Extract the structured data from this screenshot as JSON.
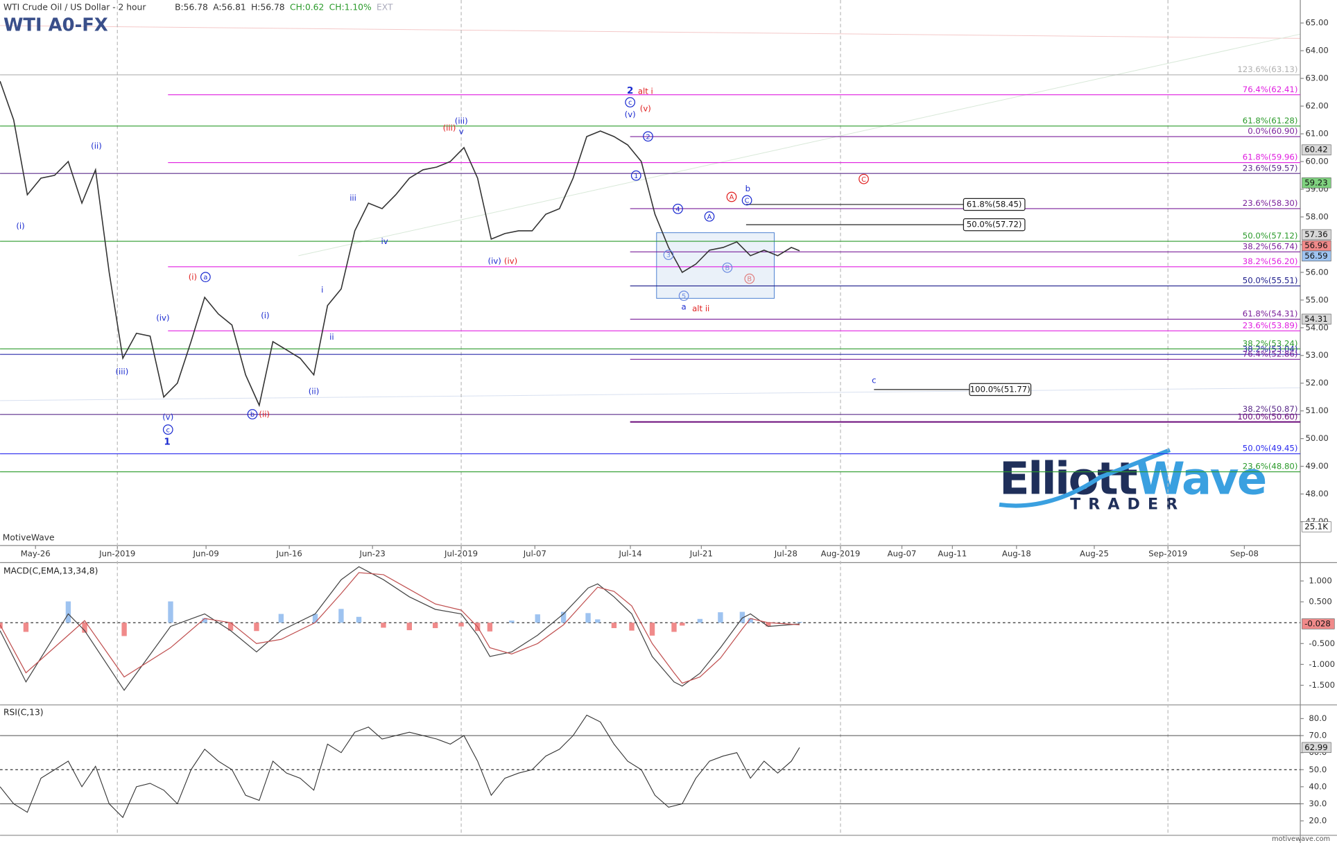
{
  "chart_data": {
    "type": "line",
    "title": "WTI Crude Oil / US Dollar - 2 hour",
    "symbol": "WTI A0-FX",
    "quote": [
      "B:56.78",
      "A:56.81",
      "H:56.78",
      "CH:0.62",
      "CH:1.10%",
      "EXT"
    ],
    "watermark": "MotiveWave",
    "footer": "motivewave.com",
    "logo": {
      "brand1": "Elliott",
      "brand2": "Wave",
      "tagline": "TRADER"
    },
    "x": [
      0,
      10,
      20,
      30,
      40,
      50,
      60,
      70,
      80,
      90,
      100,
      110,
      120,
      130,
      140,
      150,
      160,
      170,
      180,
      190,
      200,
      210,
      220,
      230,
      240,
      250,
      260,
      270,
      280,
      290,
      300,
      310,
      320,
      330,
      340,
      350,
      360,
      370,
      380,
      390,
      400,
      410,
      420,
      430,
      440,
      450,
      460,
      470,
      480,
      490,
      500,
      510,
      520,
      530,
      540,
      550,
      560,
      570,
      580,
      586
    ],
    "series": [
      {
        "name": "WTI A0-FX",
        "color": "#333333",
        "values": [
          62.9,
          61.5,
          58.8,
          59.4,
          59.5,
          60.0,
          58.5,
          59.7,
          56.0,
          52.9,
          53.8,
          53.7,
          51.5,
          52.0,
          53.5,
          55.1,
          54.5,
          54.1,
          52.3,
          51.2,
          53.5,
          53.2,
          52.9,
          52.3,
          54.8,
          55.4,
          57.5,
          58.5,
          58.3,
          58.8,
          59.4,
          59.7,
          59.8,
          60.0,
          60.5,
          59.4,
          57.2,
          57.4,
          57.5,
          57.5,
          58.1,
          58.3,
          59.4,
          60.9,
          61.1,
          60.9,
          60.6,
          60.0,
          58.1,
          56.9,
          56.0,
          56.3,
          56.8,
          56.9,
          57.1,
          56.6,
          56.8,
          56.6,
          56.9,
          56.78
        ]
      }
    ],
    "xlim": [
      0,
      953
    ],
    "xticks": [
      {
        "value": 26,
        "label": "May-26"
      },
      {
        "value": 86,
        "label": "Jun-2019"
      },
      {
        "value": 151,
        "label": "Jun-09"
      },
      {
        "value": 212,
        "label": "Jun-16"
      },
      {
        "value": 273,
        "label": "Jun-23"
      },
      {
        "value": 338,
        "label": "Jul-2019"
      },
      {
        "value": 392,
        "label": "Jul-07"
      },
      {
        "value": 462,
        "label": "Jul-14"
      },
      {
        "value": 514,
        "label": "Jul-21"
      },
      {
        "value": 576,
        "label": "Jul-28"
      },
      {
        "value": 616,
        "label": "Aug-2019"
      },
      {
        "value": 661,
        "label": "Aug-07"
      },
      {
        "value": 698,
        "label": "Aug-11"
      },
      {
        "value": 745,
        "label": "Aug-18"
      },
      {
        "value": 802,
        "label": "Aug-25"
      },
      {
        "value": 856,
        "label": "Sep-2019"
      },
      {
        "value": 912,
        "label": "Sep-08"
      }
    ],
    "ylim": [
      46.14,
      65.83
    ],
    "yticks": [
      {
        "value": 47,
        "label": "47.00"
      },
      {
        "value": 48,
        "label": "48.00"
      },
      {
        "value": 49,
        "label": "49.00"
      },
      {
        "value": 50,
        "label": "50.00"
      },
      {
        "value": 51,
        "label": "51.00"
      },
      {
        "value": 52,
        "label": "52.00"
      },
      {
        "value": 53,
        "label": "53.00"
      },
      {
        "value": 54,
        "label": "54.00"
      },
      {
        "value": 55,
        "label": "55.00"
      },
      {
        "value": 56,
        "label": "56.00"
      },
      {
        "value": 57,
        "label": "57.00"
      },
      {
        "value": 58,
        "label": "58.00"
      },
      {
        "value": 59,
        "label": "59.00"
      },
      {
        "value": 60,
        "label": "60.00"
      },
      {
        "value": 61,
        "label": "61.00"
      },
      {
        "value": 62,
        "label": "62.00"
      },
      {
        "value": 63,
        "label": "63.00"
      },
      {
        "value": 64,
        "label": "64.00"
      },
      {
        "value": 65,
        "label": "65.00"
      }
    ],
    "price_badges": [
      {
        "value": 60.42,
        "label": "60.42",
        "color": "#d8d8d8"
      },
      {
        "value": 59.23,
        "label": "59.23",
        "color": "#7fd27f"
      },
      {
        "value": 57.36,
        "label": "57.36",
        "color": "#d8d8d8"
      },
      {
        "value": 56.96,
        "label": "56.96",
        "color": "#f08a8a"
      },
      {
        "value": 56.59,
        "label": "56.59",
        "color": "#9ec3f0"
      },
      {
        "value": 54.31,
        "label": "54.31",
        "color": "#d8d8d8"
      }
    ],
    "volume_badge": "25.1K",
    "fib_levels": [
      {
        "label": "123.6%(63.13)",
        "value": 63.13,
        "color": "#b0b0b0"
      },
      {
        "label": "76.4%(62.41)",
        "value": 62.41,
        "color": "#e01ee0"
      },
      {
        "label": "61.8%(61.28)",
        "value": 61.28,
        "color": "#2a9a2a"
      },
      {
        "label": "0.0%(60.90)",
        "value": 60.9,
        "color": "#7a1f9a"
      },
      {
        "label": "61.8%(59.96)",
        "value": 59.96,
        "color": "#e01ee0"
      },
      {
        "label": "23.6%(59.57)",
        "value": 59.57,
        "color": "#5a2a8a"
      },
      {
        "label": "23.6%(58.30)",
        "value": 58.3,
        "color": "#7a1f9a"
      },
      {
        "label": "50.0%(57.12)",
        "value": 57.12,
        "color": "#2a9a2a"
      },
      {
        "label": "38.2%(56.74)",
        "value": 56.74,
        "color": "#7a1f9a"
      },
      {
        "label": "38.2%(56.20)",
        "value": 56.2,
        "color": "#e01ee0"
      },
      {
        "label": "50.0%(55.51)",
        "value": 55.51,
        "color": "#1a1a8a"
      },
      {
        "label": "61.8%(54.31)",
        "value": 54.31,
        "color": "#7a1f9a"
      },
      {
        "label": "23.6%(53.89)",
        "value": 53.89,
        "color": "#e01ee0"
      },
      {
        "label": "38.2%(53.24)",
        "value": 53.24,
        "color": "#2a9a2a"
      },
      {
        "label": "38.2%(53.04)",
        "value": 53.04,
        "color": "#2a2aaa"
      },
      {
        "label": "76.4%(52.86)",
        "value": 52.86,
        "color": "#7a1f9a"
      },
      {
        "label": "38.2%(50.87)",
        "value": 50.87,
        "color": "#5a2a8a"
      },
      {
        "label": "100.0%(50.60)",
        "value": 50.6,
        "color": "#6a0a7a"
      },
      {
        "label": "50.0%(49.45)",
        "value": 49.45,
        "color": "#2a2aee"
      },
      {
        "label": "23.6%(48.80)",
        "value": 48.8,
        "color": "#2a9a2a"
      }
    ],
    "measure_levels": [
      {
        "label": "61.8%(58.45)",
        "value": 58.45
      },
      {
        "label": "50.0%(57.72)",
        "value": 57.72
      },
      {
        "label": "100.0%(51.77)",
        "value": 51.77
      }
    ],
    "wave_labels": [
      "(i)",
      "(ii)",
      "(iii)",
      "(iv)",
      "(v)",
      "c",
      "1",
      "(i)",
      "a",
      "b",
      "(ii)",
      "(i)",
      "(ii)",
      "i",
      "ii",
      "iii",
      "iv",
      "(iii)",
      "(iii)",
      "v",
      "(iv)",
      "(iv)",
      "2",
      "alt i",
      "c",
      "(v)",
      "(v)",
      "2",
      "1",
      "4",
      "A",
      "A",
      "C",
      "b",
      "C",
      "3",
      "B",
      "B",
      "5",
      "a",
      "alt ii",
      "c"
    ],
    "macd": {
      "title": "MACD(C,EMA,13,34,8)",
      "x": [
        0,
        19,
        50,
        62,
        91,
        125,
        150,
        169,
        188,
        206,
        231,
        250,
        263,
        281,
        300,
        319,
        338,
        350,
        359,
        375,
        394,
        413,
        431,
        438,
        450,
        463,
        478,
        494,
        500,
        513,
        528,
        544,
        550,
        563,
        586
      ],
      "series": [
        {
          "name": "MACD",
          "color": "#444444",
          "values": [
            -0.19,
            -1.42,
            0.21,
            -0.19,
            -1.62,
            -0.09,
            0.21,
            -0.19,
            -0.7,
            -0.19,
            0.21,
            1.03,
            1.34,
            1.03,
            0.62,
            0.32,
            0.21,
            -0.3,
            -0.81,
            -0.7,
            -0.3,
            0.21,
            0.83,
            0.93,
            0.62,
            0.21,
            -0.81,
            -1.42,
            -1.52,
            -1.21,
            -0.6,
            0.11,
            0.21,
            -0.09,
            -0.03
          ]
        },
        {
          "name": "Signal",
          "color": "#c05050",
          "values": [
            -0.05,
            -1.2,
            -0.3,
            0.05,
            -1.3,
            -0.6,
            0.1,
            0.0,
            -0.5,
            -0.4,
            0.0,
            0.7,
            1.2,
            1.15,
            0.8,
            0.45,
            0.3,
            -0.1,
            -0.6,
            -0.75,
            -0.5,
            -0.05,
            0.6,
            0.85,
            0.75,
            0.4,
            -0.5,
            -1.2,
            -1.45,
            -1.3,
            -0.85,
            -0.15,
            0.1,
            0.0,
            -0.05
          ]
        }
      ],
      "histogram": [
        -0.14,
        -0.22,
        0.51,
        -0.24,
        -0.32,
        0.51,
        0.11,
        -0.19,
        -0.2,
        0.21,
        0.21,
        0.33,
        0.14,
        -0.12,
        -0.18,
        -0.13,
        -0.09,
        -0.2,
        -0.21,
        0.05,
        0.2,
        0.26,
        0.23,
        0.08,
        -0.13,
        -0.19,
        -0.31,
        -0.22,
        -0.07,
        0.09,
        0.25,
        0.26,
        0.11,
        -0.09,
        0.02
      ],
      "ylim": [
        -1.93,
        1.4
      ],
      "yticks": [
        {
          "value": -1.5,
          "label": "-1.500"
        },
        {
          "value": -1,
          "label": "-1.000"
        },
        {
          "value": -0.5,
          "label": "-0.500"
        },
        {
          "value": 0.5,
          "label": "0.500"
        },
        {
          "value": 1,
          "label": "1.000"
        }
      ],
      "badge": {
        "value": -0.028,
        "label": "-0.028"
      }
    },
    "rsi": {
      "title": "RSI(C,13)",
      "values": [
        40,
        30,
        25,
        45,
        50,
        55,
        40,
        52,
        30,
        22,
        40,
        42,
        38,
        30,
        50,
        62,
        55,
        50,
        35,
        32,
        55,
        48,
        45,
        38,
        65,
        60,
        72,
        75,
        68,
        70,
        72,
        70,
        68,
        65,
        70,
        55,
        35,
        45,
        48,
        50,
        58,
        62,
        70,
        82,
        78,
        65,
        55,
        50,
        35,
        28,
        30,
        45,
        55,
        58,
        60,
        45,
        55,
        48,
        55,
        62.99
      ],
      "ylim": [
        12.5,
        87
      ],
      "yticks": [
        {
          "value": 20,
          "label": "20.0"
        },
        {
          "value": 30,
          "label": "30.0"
        },
        {
          "value": 40,
          "label": "40.0"
        },
        {
          "value": 50,
          "label": "50.0"
        },
        {
          "value": 60,
          "label": "60.0"
        },
        {
          "value": 70,
          "label": "70.0"
        },
        {
          "value": 80,
          "label": "80.0"
        }
      ],
      "badge": 62.99
    }
  }
}
